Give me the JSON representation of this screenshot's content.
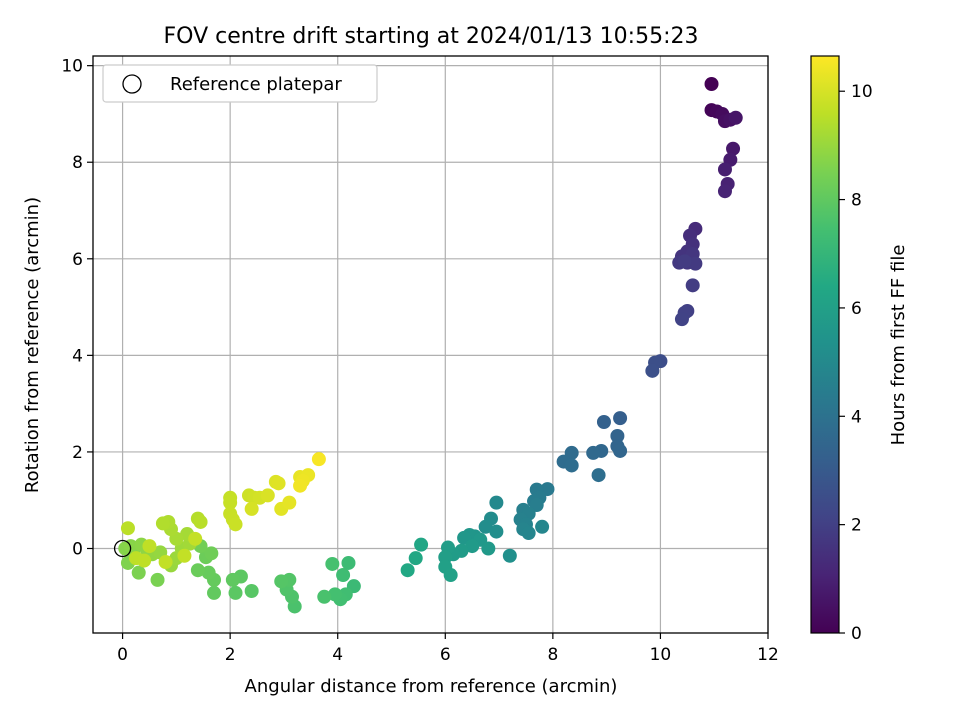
{
  "chart_data": {
    "type": "scatter",
    "title": "FOV centre drift starting at 2024/01/13 10:55:23",
    "xlabel": "Angular distance from reference (arcmin)",
    "ylabel": "Rotation from reference (arcmin)",
    "xlim": [
      -0.55,
      12.0
    ],
    "ylim": [
      -1.75,
      10.2
    ],
    "xticks": [
      0,
      2,
      4,
      6,
      8,
      10,
      12
    ],
    "yticks": [
      0,
      2,
      4,
      6,
      8,
      10
    ],
    "grid": true,
    "legend": {
      "position": "top-left",
      "entries": [
        "Reference platepar"
      ]
    },
    "reference_point": {
      "x": 0,
      "y": 0
    },
    "colorbar": {
      "label": "Hours from first FF file",
      "colormap": "viridis",
      "range": [
        0,
        10.65
      ],
      "ticks": [
        0,
        2,
        4,
        6,
        8,
        10
      ]
    },
    "points": [
      {
        "x": 10.95,
        "y": 9.62,
        "c": 0.0
      },
      {
        "x": 10.95,
        "y": 9.08,
        "c": 0.1
      },
      {
        "x": 11.05,
        "y": 9.05,
        "c": 0.2
      },
      {
        "x": 11.15,
        "y": 9.0,
        "c": 0.3
      },
      {
        "x": 11.2,
        "y": 8.85,
        "c": 0.4
      },
      {
        "x": 11.3,
        "y": 8.88,
        "c": 0.5
      },
      {
        "x": 11.4,
        "y": 8.92,
        "c": 0.6
      },
      {
        "x": 11.35,
        "y": 8.28,
        "c": 0.7
      },
      {
        "x": 11.3,
        "y": 8.05,
        "c": 0.8
      },
      {
        "x": 11.2,
        "y": 7.85,
        "c": 0.9
      },
      {
        "x": 11.25,
        "y": 7.55,
        "c": 1.0
      },
      {
        "x": 11.2,
        "y": 7.4,
        "c": 1.05
      },
      {
        "x": 10.65,
        "y": 6.62,
        "c": 1.3
      },
      {
        "x": 10.55,
        "y": 6.48,
        "c": 1.4
      },
      {
        "x": 10.6,
        "y": 6.3,
        "c": 1.5
      },
      {
        "x": 10.5,
        "y": 6.15,
        "c": 1.55
      },
      {
        "x": 10.4,
        "y": 6.05,
        "c": 1.6
      },
      {
        "x": 10.6,
        "y": 6.1,
        "c": 1.65
      },
      {
        "x": 10.5,
        "y": 5.92,
        "c": 1.7
      },
      {
        "x": 10.35,
        "y": 5.92,
        "c": 1.75
      },
      {
        "x": 10.65,
        "y": 5.9,
        "c": 1.8
      },
      {
        "x": 10.45,
        "y": 5.95,
        "c": 1.85
      },
      {
        "x": 10.6,
        "y": 5.45,
        "c": 1.9
      },
      {
        "x": 10.5,
        "y": 4.92,
        "c": 2.0
      },
      {
        "x": 10.45,
        "y": 4.88,
        "c": 2.05
      },
      {
        "x": 10.4,
        "y": 4.75,
        "c": 2.1
      },
      {
        "x": 10.0,
        "y": 3.88,
        "c": 2.5
      },
      {
        "x": 9.9,
        "y": 3.85,
        "c": 2.55
      },
      {
        "x": 9.85,
        "y": 3.68,
        "c": 2.6
      },
      {
        "x": 9.25,
        "y": 2.7,
        "c": 3.2
      },
      {
        "x": 8.95,
        "y": 2.62,
        "c": 3.3
      },
      {
        "x": 9.2,
        "y": 2.33,
        "c": 3.4
      },
      {
        "x": 9.2,
        "y": 2.12,
        "c": 3.45
      },
      {
        "x": 9.25,
        "y": 2.02,
        "c": 3.5
      },
      {
        "x": 8.9,
        "y": 2.02,
        "c": 3.55
      },
      {
        "x": 8.75,
        "y": 1.98,
        "c": 3.6
      },
      {
        "x": 8.35,
        "y": 1.98,
        "c": 3.7
      },
      {
        "x": 8.2,
        "y": 1.8,
        "c": 3.75
      },
      {
        "x": 8.35,
        "y": 1.72,
        "c": 3.8
      },
      {
        "x": 8.85,
        "y": 1.52,
        "c": 3.85
      },
      {
        "x": 7.9,
        "y": 1.23,
        "c": 4.3
      },
      {
        "x": 7.7,
        "y": 1.22,
        "c": 4.35
      },
      {
        "x": 7.75,
        "y": 1.05,
        "c": 4.4
      },
      {
        "x": 7.65,
        "y": 0.98,
        "c": 4.45
      },
      {
        "x": 7.7,
        "y": 0.9,
        "c": 4.5
      },
      {
        "x": 7.45,
        "y": 0.8,
        "c": 4.55
      },
      {
        "x": 7.55,
        "y": 0.72,
        "c": 4.6
      },
      {
        "x": 7.4,
        "y": 0.6,
        "c": 4.65
      },
      {
        "x": 7.5,
        "y": 0.5,
        "c": 4.7
      },
      {
        "x": 7.45,
        "y": 0.4,
        "c": 4.75
      },
      {
        "x": 7.55,
        "y": 0.32,
        "c": 4.8
      },
      {
        "x": 7.8,
        "y": 0.45,
        "c": 4.85
      },
      {
        "x": 6.95,
        "y": 0.95,
        "c": 5.0
      },
      {
        "x": 6.85,
        "y": 0.62,
        "c": 5.1
      },
      {
        "x": 6.75,
        "y": 0.45,
        "c": 5.15
      },
      {
        "x": 6.95,
        "y": 0.35,
        "c": 5.2
      },
      {
        "x": 7.2,
        "y": -0.15,
        "c": 5.3
      },
      {
        "x": 6.55,
        "y": 0.25,
        "c": 5.5
      },
      {
        "x": 6.45,
        "y": 0.28,
        "c": 5.55
      },
      {
        "x": 6.35,
        "y": 0.22,
        "c": 5.6
      },
      {
        "x": 6.65,
        "y": 0.18,
        "c": 5.65
      },
      {
        "x": 6.8,
        "y": 0.0,
        "c": 5.7
      },
      {
        "x": 6.5,
        "y": 0.05,
        "c": 5.75
      },
      {
        "x": 6.3,
        "y": -0.05,
        "c": 5.8
      },
      {
        "x": 6.15,
        "y": -0.12,
        "c": 5.85
      },
      {
        "x": 6.05,
        "y": 0.02,
        "c": 5.9
      },
      {
        "x": 6.0,
        "y": -0.18,
        "c": 5.95
      },
      {
        "x": 6.0,
        "y": -0.38,
        "c": 6.0
      },
      {
        "x": 6.1,
        "y": -0.55,
        "c": 6.05
      },
      {
        "x": 5.55,
        "y": 0.08,
        "c": 6.3
      },
      {
        "x": 5.45,
        "y": -0.2,
        "c": 6.35
      },
      {
        "x": 5.3,
        "y": -0.45,
        "c": 6.4
      },
      {
        "x": 4.3,
        "y": -0.78,
        "c": 7.2
      },
      {
        "x": 4.2,
        "y": -0.3,
        "c": 7.25
      },
      {
        "x": 4.1,
        "y": -0.55,
        "c": 7.3
      },
      {
        "x": 4.15,
        "y": -0.95,
        "c": 7.35
      },
      {
        "x": 4.05,
        "y": -1.05,
        "c": 7.4
      },
      {
        "x": 3.95,
        "y": -0.95,
        "c": 7.45
      },
      {
        "x": 3.9,
        "y": -0.32,
        "c": 7.5
      },
      {
        "x": 3.75,
        "y": -1.0,
        "c": 7.55
      },
      {
        "x": 3.2,
        "y": -1.2,
        "c": 7.6
      },
      {
        "x": 3.15,
        "y": -1.0,
        "c": 7.65
      },
      {
        "x": 3.05,
        "y": -0.85,
        "c": 7.7
      },
      {
        "x": 3.1,
        "y": -0.65,
        "c": 7.75
      },
      {
        "x": 2.95,
        "y": -0.68,
        "c": 7.8
      },
      {
        "x": 2.4,
        "y": -0.88,
        "c": 7.85
      },
      {
        "x": 2.1,
        "y": -0.92,
        "c": 7.9
      },
      {
        "x": 2.2,
        "y": -0.58,
        "c": 7.95
      },
      {
        "x": 2.05,
        "y": -0.65,
        "c": 8.0
      },
      {
        "x": 1.7,
        "y": -0.92,
        "c": 8.05
      },
      {
        "x": 1.7,
        "y": -0.65,
        "c": 8.1
      },
      {
        "x": 1.6,
        "y": -0.5,
        "c": 8.15
      },
      {
        "x": 1.4,
        "y": -0.45,
        "c": 8.2
      },
      {
        "x": 1.55,
        "y": -0.18,
        "c": 8.25
      },
      {
        "x": 1.65,
        "y": -0.1,
        "c": 8.3
      },
      {
        "x": 1.45,
        "y": 0.05,
        "c": 8.35
      },
      {
        "x": 0.65,
        "y": -0.65,
        "c": 8.5
      },
      {
        "x": 0.3,
        "y": -0.5,
        "c": 8.55
      },
      {
        "x": 0.1,
        "y": -0.3,
        "c": 8.6
      },
      {
        "x": 0.2,
        "y": -0.1,
        "c": 8.65
      },
      {
        "x": 0.05,
        "y": 0.0,
        "c": 8.7
      },
      {
        "x": 0.15,
        "y": 0.05,
        "c": 8.75
      },
      {
        "x": 0.35,
        "y": 0.08,
        "c": 8.8
      },
      {
        "x": 0.45,
        "y": -0.02,
        "c": 8.85
      },
      {
        "x": 0.55,
        "y": -0.12,
        "c": 8.9
      },
      {
        "x": 0.7,
        "y": -0.08,
        "c": 8.95
      },
      {
        "x": 0.9,
        "y": -0.35,
        "c": 9.0
      },
      {
        "x": 1.0,
        "y": -0.2,
        "c": 9.05
      },
      {
        "x": 1.1,
        "y": 0.0,
        "c": 9.1
      },
      {
        "x": 1.25,
        "y": 0.1,
        "c": 9.15
      },
      {
        "x": 1.2,
        "y": 0.3,
        "c": 9.2
      },
      {
        "x": 1.0,
        "y": 0.2,
        "c": 9.25
      },
      {
        "x": 0.9,
        "y": 0.4,
        "c": 9.3
      },
      {
        "x": 0.85,
        "y": 0.55,
        "c": 9.35
      },
      {
        "x": 0.75,
        "y": 0.52,
        "c": 9.4
      },
      {
        "x": 1.4,
        "y": 0.62,
        "c": 9.45
      },
      {
        "x": 1.45,
        "y": 0.55,
        "c": 9.5
      },
      {
        "x": 0.1,
        "y": 0.42,
        "c": 9.55
      },
      {
        "x": 0.25,
        "y": -0.2,
        "c": 9.6
      },
      {
        "x": 0.4,
        "y": -0.25,
        "c": 9.62
      },
      {
        "x": 0.5,
        "y": 0.05,
        "c": 9.64
      },
      {
        "x": 0.8,
        "y": -0.28,
        "c": 9.66
      },
      {
        "x": 1.15,
        "y": -0.15,
        "c": 9.68
      },
      {
        "x": 1.35,
        "y": 0.2,
        "c": 9.7
      },
      {
        "x": 2.0,
        "y": 1.05,
        "c": 9.72
      },
      {
        "x": 2.0,
        "y": 0.95,
        "c": 9.74
      },
      {
        "x": 2.0,
        "y": 0.72,
        "c": 9.76
      },
      {
        "x": 2.05,
        "y": 0.6,
        "c": 9.78
      },
      {
        "x": 2.1,
        "y": 0.5,
        "c": 9.8
      },
      {
        "x": 2.35,
        "y": 1.1,
        "c": 9.85
      },
      {
        "x": 2.45,
        "y": 1.05,
        "c": 9.9
      },
      {
        "x": 2.55,
        "y": 1.05,
        "c": 9.95
      },
      {
        "x": 2.4,
        "y": 0.82,
        "c": 10.0
      },
      {
        "x": 2.7,
        "y": 1.1,
        "c": 10.05
      },
      {
        "x": 2.85,
        "y": 1.38,
        "c": 10.1
      },
      {
        "x": 2.9,
        "y": 1.35,
        "c": 10.15
      },
      {
        "x": 2.95,
        "y": 0.82,
        "c": 10.2
      },
      {
        "x": 3.1,
        "y": 0.95,
        "c": 10.25
      },
      {
        "x": 3.3,
        "y": 1.48,
        "c": 10.3
      },
      {
        "x": 3.45,
        "y": 1.52,
        "c": 10.35
      },
      {
        "x": 3.35,
        "y": 1.4,
        "c": 10.4
      },
      {
        "x": 3.3,
        "y": 1.3,
        "c": 10.45
      },
      {
        "x": 3.65,
        "y": 1.85,
        "c": 10.55
      }
    ]
  }
}
